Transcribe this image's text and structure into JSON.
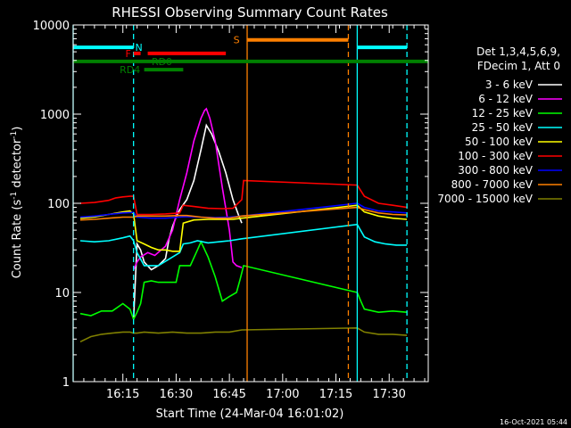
{
  "chart_data": {
    "type": "line",
    "title": "RHESSI Observing Summary Count Rates",
    "xlabel": "Start Time (24-Mar-04 16:01:02)",
    "ylabel_main": "Count Rate (s",
    "ylabel_sup1": "-1",
    "ylabel_mid": " detector",
    "ylabel_sup2": "-1",
    "ylabel_end": ")",
    "footer_date": "16-Oct-2021 05:44",
    "y_scale": "log",
    "ylim": [
      1,
      10000
    ],
    "xlim_minutes": [
      0,
      100
    ],
    "x_ticks": [
      {
        "minute": 14,
        "label": "16:15"
      },
      {
        "minute": 29,
        "label": "16:30"
      },
      {
        "minute": 44,
        "label": "16:45"
      },
      {
        "minute": 59,
        "label": "17:00"
      },
      {
        "minute": 74,
        "label": "17:15"
      },
      {
        "minute": 89,
        "label": "17:30"
      }
    ],
    "y_ticks": [
      {
        "value": 1,
        "label": "1"
      },
      {
        "value": 10,
        "label": "10"
      },
      {
        "value": 100,
        "label": "100"
      },
      {
        "value": 1000,
        "label": "1000"
      },
      {
        "value": 10000,
        "label": "10000"
      }
    ],
    "legend_header": [
      "Det 1,3,4,5,6,9,",
      "FDecim 1, Att 0"
    ],
    "series": [
      {
        "name": "3 - 6 keV",
        "color": "#ffffff",
        "points": [
          [
            17,
            5
          ],
          [
            18,
            35
          ],
          [
            19,
            30
          ],
          [
            20,
            22
          ],
          [
            22,
            18
          ],
          [
            24,
            20
          ],
          [
            26,
            24
          ],
          [
            27,
            40
          ],
          [
            28,
            55
          ],
          [
            29,
            70
          ],
          [
            30,
            85
          ],
          [
            32,
            110
          ],
          [
            34,
            180
          ],
          [
            36,
            400
          ],
          [
            37.5,
            750
          ],
          [
            39,
            600
          ],
          [
            41,
            380
          ],
          [
            43,
            220
          ],
          [
            45,
            110
          ],
          [
            46.5,
            75
          ],
          [
            47.5,
            60
          ]
        ]
      },
      {
        "name": "6 - 12 keV",
        "color": "#ff00ff",
        "points": [
          [
            17,
            18
          ],
          [
            18,
            22
          ],
          [
            19,
            25
          ],
          [
            21,
            28
          ],
          [
            23,
            26
          ],
          [
            26,
            33
          ],
          [
            28,
            50
          ],
          [
            30,
            110
          ],
          [
            32,
            220
          ],
          [
            34,
            500
          ],
          [
            36,
            900
          ],
          [
            37,
            1100
          ],
          [
            37.5,
            1150
          ],
          [
            38.5,
            900
          ],
          [
            40,
            500
          ],
          [
            42,
            150
          ],
          [
            44,
            50
          ],
          [
            45,
            22
          ],
          [
            46,
            20
          ],
          [
            47.5,
            19
          ]
        ]
      },
      {
        "name": "12 - 25 keV",
        "color": "#00ff00",
        "points": [
          [
            2,
            5.8
          ],
          [
            5,
            5.5
          ],
          [
            8,
            6.2
          ],
          [
            11,
            6.2
          ],
          [
            14,
            7.5
          ],
          [
            16,
            6.5
          ],
          [
            17,
            5
          ],
          [
            18,
            6
          ],
          [
            19,
            7.5
          ],
          [
            20,
            13
          ],
          [
            22,
            13.5
          ],
          [
            24,
            13
          ],
          [
            27,
            13
          ],
          [
            29,
            13
          ],
          [
            30,
            20
          ],
          [
            33,
            20
          ],
          [
            35,
            30
          ],
          [
            36,
            37
          ],
          [
            38,
            25
          ],
          [
            40,
            15
          ],
          [
            42,
            8
          ],
          [
            44,
            9
          ],
          [
            46,
            10
          ],
          [
            47,
            14
          ],
          [
            48,
            20
          ],
          [
            80,
            10
          ],
          [
            81,
            8
          ],
          [
            82,
            6.5
          ],
          [
            86,
            6
          ],
          [
            90,
            6.2
          ],
          [
            94,
            6
          ]
        ]
      },
      {
        "name": "25 - 50 keV",
        "color": "#00ffff",
        "points": [
          [
            2,
            38
          ],
          [
            6,
            37
          ],
          [
            10,
            38
          ],
          [
            14,
            41
          ],
          [
            16,
            43
          ],
          [
            17,
            38
          ],
          [
            18,
            28
          ],
          [
            20,
            20
          ],
          [
            22,
            20
          ],
          [
            24,
            20
          ],
          [
            28,
            25
          ],
          [
            30,
            28
          ],
          [
            31,
            35
          ],
          [
            33,
            36
          ],
          [
            35,
            38
          ],
          [
            38,
            36
          ],
          [
            41,
            37
          ],
          [
            44,
            38
          ],
          [
            47.5,
            40
          ],
          [
            80,
            58
          ],
          [
            82,
            42
          ],
          [
            85,
            37
          ],
          [
            88,
            35
          ],
          [
            91,
            34
          ],
          [
            94,
            34
          ]
        ]
      },
      {
        "name": "50 - 100 keV",
        "color": "#ffff00",
        "points": [
          [
            2,
            68
          ],
          [
            6,
            70
          ],
          [
            10,
            75
          ],
          [
            14,
            80
          ],
          [
            16,
            82
          ],
          [
            17,
            76
          ],
          [
            18,
            38
          ],
          [
            20,
            35
          ],
          [
            22,
            32
          ],
          [
            24,
            30
          ],
          [
            26,
            30
          ],
          [
            28,
            29
          ],
          [
            30,
            29
          ],
          [
            31,
            60
          ],
          [
            34,
            65
          ],
          [
            38,
            66
          ],
          [
            42,
            66
          ],
          [
            45,
            66
          ],
          [
            47.5,
            68
          ],
          [
            80,
            95
          ],
          [
            82,
            80
          ],
          [
            86,
            72
          ],
          [
            90,
            68
          ],
          [
            94,
            66
          ]
        ]
      },
      {
        "name": "100 - 300 keV",
        "color": "#ff0000",
        "points": [
          [
            2,
            100
          ],
          [
            6,
            102
          ],
          [
            10,
            108
          ],
          [
            12,
            115
          ],
          [
            14,
            118
          ],
          [
            16,
            120
          ],
          [
            17,
            120
          ],
          [
            18,
            75
          ],
          [
            22,
            75
          ],
          [
            26,
            76
          ],
          [
            30,
            78
          ],
          [
            31,
            95
          ],
          [
            34,
            92
          ],
          [
            38,
            88
          ],
          [
            42,
            87
          ],
          [
            45,
            88
          ],
          [
            47.5,
            110
          ],
          [
            48,
            180
          ],
          [
            80,
            160
          ],
          [
            82,
            120
          ],
          [
            86,
            100
          ],
          [
            90,
            95
          ],
          [
            94,
            90
          ]
        ]
      },
      {
        "name": "300 - 800 keV",
        "color": "#0000ff",
        "points": [
          [
            2,
            70
          ],
          [
            6,
            72
          ],
          [
            10,
            75
          ],
          [
            14,
            78
          ],
          [
            17,
            79
          ],
          [
            18,
            70
          ],
          [
            22,
            68
          ],
          [
            26,
            68
          ],
          [
            30,
            70
          ],
          [
            32,
            71
          ],
          [
            36,
            70
          ],
          [
            40,
            69
          ],
          [
            44,
            70
          ],
          [
            47.5,
            72
          ],
          [
            80,
            100
          ],
          [
            82,
            90
          ],
          [
            86,
            82
          ],
          [
            90,
            80
          ],
          [
            94,
            78
          ]
        ]
      },
      {
        "name": "800 - 7000 keV",
        "color": "#ff8000",
        "points": [
          [
            2,
            65
          ],
          [
            6,
            66
          ],
          [
            10,
            68
          ],
          [
            14,
            70
          ],
          [
            17,
            70
          ],
          [
            18,
            72
          ],
          [
            22,
            72
          ],
          [
            26,
            72
          ],
          [
            30,
            73
          ],
          [
            32,
            73
          ],
          [
            36,
            70
          ],
          [
            40,
            68
          ],
          [
            44,
            68
          ],
          [
            47.5,
            72
          ],
          [
            80,
            90
          ],
          [
            82,
            85
          ],
          [
            86,
            78
          ],
          [
            90,
            75
          ],
          [
            94,
            74
          ]
        ]
      },
      {
        "name": "7000 - 15000 keV",
        "color": "#808000",
        "points": [
          [
            2,
            2.8
          ],
          [
            5,
            3.2
          ],
          [
            8,
            3.4
          ],
          [
            11,
            3.5
          ],
          [
            14,
            3.6
          ],
          [
            16,
            3.6
          ],
          [
            17,
            3.5
          ],
          [
            18,
            3.5
          ],
          [
            20,
            3.6
          ],
          [
            24,
            3.5
          ],
          [
            28,
            3.6
          ],
          [
            32,
            3.5
          ],
          [
            36,
            3.5
          ],
          [
            40,
            3.6
          ],
          [
            44,
            3.6
          ],
          [
            47.5,
            3.8
          ],
          [
            80,
            4
          ],
          [
            82,
            3.6
          ],
          [
            86,
            3.4
          ],
          [
            90,
            3.4
          ],
          [
            94,
            3.3
          ]
        ]
      }
    ],
    "flag_bars": [
      {
        "label": "N",
        "color": "#00ffff",
        "y": 5600,
        "segments": [
          [
            0,
            17
          ],
          [
            80,
            94
          ]
        ],
        "label_minute": 18.5
      },
      {
        "label": "S",
        "color": "#ff8000",
        "y": 6800,
        "segments": [
          [
            49,
            77.5
          ]
        ],
        "label_minute": 46
      },
      {
        "label": "F",
        "color": "#ff0000",
        "y": 4800,
        "segments": [
          [
            17,
            19
          ],
          [
            21,
            43
          ]
        ],
        "label_minute": 15.5
      },
      {
        "label": "RD0",
        "color": "#008000",
        "y": 3900,
        "segments": [
          [
            -5,
            100
          ]
        ],
        "label_minute": 25
      },
      {
        "label": "RD4",
        "color": "#008000",
        "y": 3150,
        "segments": [
          [
            20,
            31
          ]
        ],
        "label_minute": 16
      }
    ],
    "markers": [
      {
        "minute": 0,
        "color": "#00ffff",
        "style": "solid"
      },
      {
        "minute": 17,
        "color": "#00ffff",
        "style": "dashed"
      },
      {
        "minute": 49,
        "color": "#ff8000",
        "style": "solid"
      },
      {
        "minute": 77.5,
        "color": "#ff8000",
        "style": "dashed"
      },
      {
        "minute": 80,
        "color": "#00ffff",
        "style": "solid"
      },
      {
        "minute": 94,
        "color": "#00ffff",
        "style": "dashed"
      }
    ]
  }
}
